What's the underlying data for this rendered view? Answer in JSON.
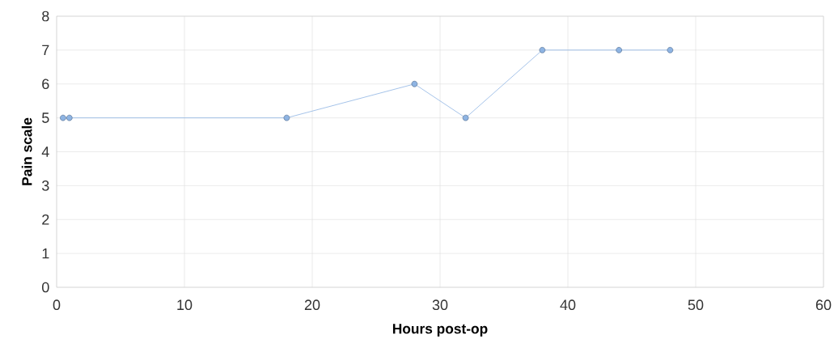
{
  "chart_data": {
    "type": "line",
    "xlabel": "Hours post-op",
    "ylabel": "Pain scale",
    "x": [
      0.5,
      1,
      18,
      28,
      32,
      38,
      44,
      48
    ],
    "series": [
      {
        "color": "#8eb4e3",
        "values": [
          5,
          5,
          5,
          6,
          5,
          7,
          7,
          7
        ]
      }
    ],
    "xlim": [
      0,
      60
    ],
    "ylim": [
      0,
      8
    ],
    "xticks": [
      0,
      10,
      20,
      30,
      40,
      50,
      60
    ],
    "yticks": [
      0,
      1,
      2,
      3,
      4,
      5,
      6,
      7,
      8
    ],
    "grid": true,
    "marker": "circle",
    "line_style": "solid"
  }
}
